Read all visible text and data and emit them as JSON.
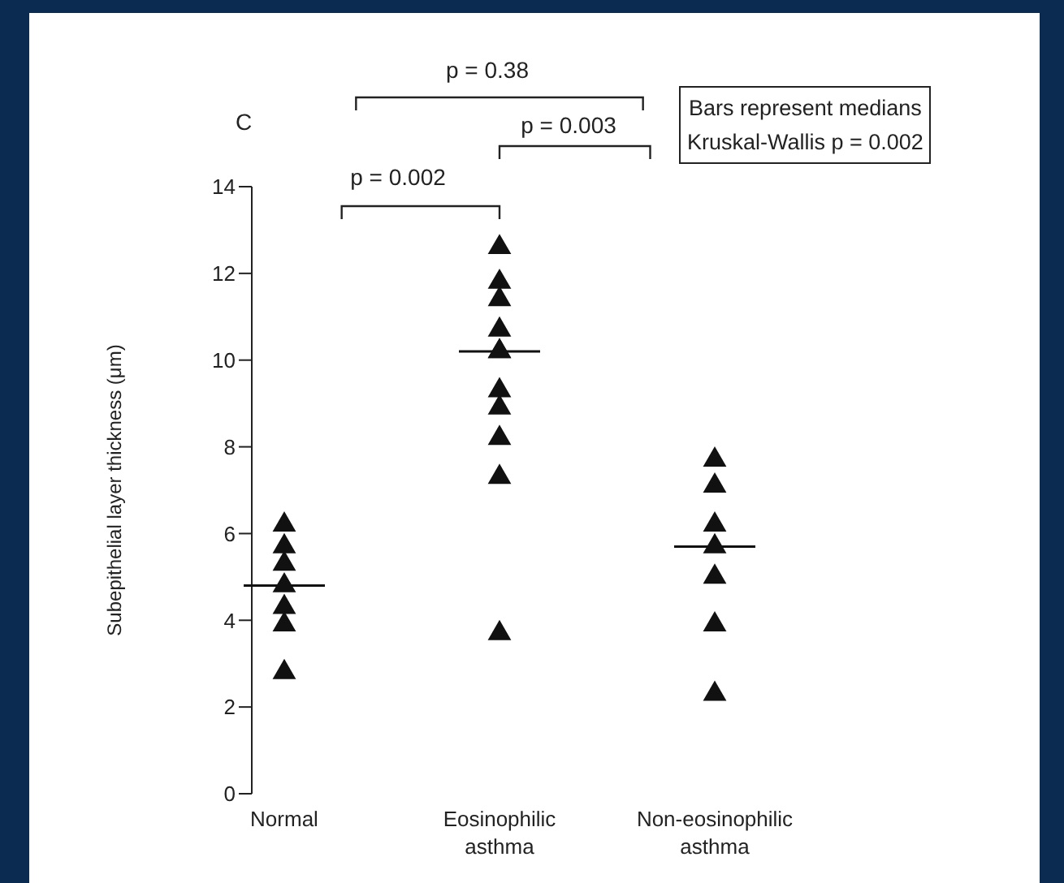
{
  "chart_data": {
    "type": "scatter",
    "categories": [
      "Normal",
      "Eosinophilic asthma",
      "Non-eosinophilic asthma"
    ],
    "ylabel": "Subepithelial layer thickness (μm)",
    "ylim": [
      0,
      14
    ],
    "yticks": [
      0,
      2,
      4,
      6,
      8,
      10,
      12,
      14
    ],
    "marker": "triangle",
    "series": [
      {
        "color": "#111111",
        "x": [
          "Normal",
          "Normal",
          "Normal",
          "Normal",
          "Normal",
          "Normal",
          "Normal",
          "Eosinophilic asthma",
          "Eosinophilic asthma",
          "Eosinophilic asthma",
          "Eosinophilic asthma",
          "Eosinophilic asthma",
          "Eosinophilic asthma",
          "Eosinophilic asthma",
          "Eosinophilic asthma",
          "Eosinophilic asthma",
          "Eosinophilic asthma",
          "Eosinophilic asthma",
          "Non-eosinophilic asthma",
          "Non-eosinophilic asthma",
          "Non-eosinophilic asthma",
          "Non-eosinophilic asthma",
          "Non-eosinophilic asthma",
          "Non-eosinophilic asthma",
          "Non-eosinophilic asthma"
        ],
        "values": [
          6.2,
          5.7,
          5.3,
          4.8,
          4.3,
          3.9,
          2.8,
          12.6,
          11.8,
          11.4,
          10.7,
          10.2,
          10.2,
          9.3,
          8.9,
          8.2,
          7.3,
          3.7,
          7.7,
          7.1,
          6.2,
          5.7,
          5.0,
          3.9,
          2.3
        ]
      },
      {
        "type": "box",
        "color": "#111111",
        "boxes": [
          {
            "low": 4.8,
            "q1": 4.8,
            "median": 4.8,
            "q3": 4.8,
            "high": 4.8
          },
          {
            "low": 10.2,
            "q1": 10.2,
            "median": 10.2,
            "q3": 10.2,
            "high": 10.2
          },
          {
            "low": 5.7,
            "q1": 5.7,
            "median": 5.7,
            "q3": 5.7,
            "high": 5.7
          }
        ]
      }
    ],
    "annotations": [
      "C",
      "p = 0.38",
      "p = 0.003",
      "p = 0.002",
      "Bars represent medians",
      "Kruskal-Wallis p = 0.002"
    ]
  }
}
